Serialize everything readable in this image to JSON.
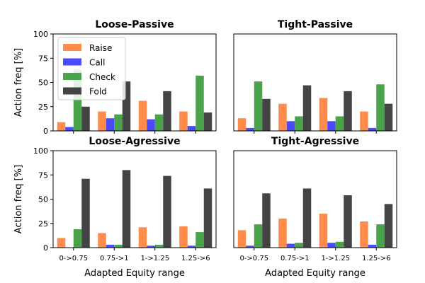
{
  "chart_data": {
    "type": "bar",
    "series_names": [
      "Raise",
      "Call",
      "Check",
      "Fold"
    ],
    "colors": [
      "#ff8c4a",
      "#4a4aff",
      "#4aa24a",
      "#444444"
    ],
    "categories": [
      "0->0.75",
      "0.75->1",
      "1->1.25",
      "1.25->6"
    ],
    "ylim": [
      0,
      100
    ],
    "yticks": [
      0,
      25,
      50,
      75,
      100
    ],
    "ylabel": "Action freq [%]",
    "xlabel": "Adapted Equity range",
    "legend_location": "upper-left of first panel",
    "panels": [
      {
        "title": "Loose-Passive",
        "series": [
          {
            "name": "Raise",
            "values": [
              9,
              20,
              31,
              20
            ]
          },
          {
            "name": "Call",
            "values": [
              4,
              13,
              12,
              5
            ]
          },
          {
            "name": "Check",
            "values": [
              63,
              17,
              17,
              57
            ]
          },
          {
            "name": "Fold",
            "values": [
              25,
              51,
              41,
              19
            ]
          }
        ]
      },
      {
        "title": "Tight-Passive",
        "series": [
          {
            "name": "Raise",
            "values": [
              13,
              28,
              34,
              20
            ]
          },
          {
            "name": "Call",
            "values": [
              3,
              10,
              10,
              3
            ]
          },
          {
            "name": "Check",
            "values": [
              51,
              15,
              15,
              48
            ]
          },
          {
            "name": "Fold",
            "values": [
              33,
              47,
              41,
              28
            ]
          }
        ]
      },
      {
        "title": "Loose-Agressive",
        "series": [
          {
            "name": "Raise",
            "values": [
              10,
              15,
              21,
              22
            ]
          },
          {
            "name": "Call",
            "values": [
              0,
              3,
              2,
              2
            ]
          },
          {
            "name": "Check",
            "values": [
              19,
              3,
              3,
              16
            ]
          },
          {
            "name": "Fold",
            "values": [
              71,
              80,
              74,
              61
            ]
          }
        ]
      },
      {
        "title": "Tight-Agressive",
        "series": [
          {
            "name": "Raise",
            "values": [
              18,
              30,
              35,
              27
            ]
          },
          {
            "name": "Call",
            "values": [
              2,
              4,
              5,
              3
            ]
          },
          {
            "name": "Check",
            "values": [
              24,
              5,
              6,
              24
            ]
          },
          {
            "name": "Fold",
            "values": [
              56,
              61,
              54,
              45
            ]
          }
        ]
      }
    ]
  }
}
